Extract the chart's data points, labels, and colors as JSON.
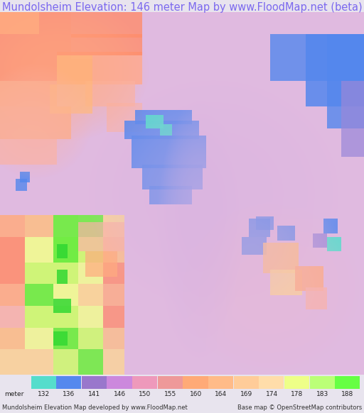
{
  "title": "Mundolsheim Elevation: 146 meter Map by www.FloodMap.net (beta)",
  "title_color": "#7b68ee",
  "title_fontsize": 10.5,
  "bg_color": "#e8e4ee",
  "footer_left": "Mundolsheim Elevation Map developed by www.FloodMap.net",
  "footer_right": "Base map © OpenStreetMap contributors",
  "colorbar_labels": [
    "meter",
    "132",
    "136",
    "141",
    "146",
    "150",
    "155",
    "160",
    "164",
    "169",
    "174",
    "178",
    "183",
    "188"
  ],
  "colorbar_colors": [
    "#55ddcc",
    "#5588ee",
    "#9977cc",
    "#cc88dd",
    "#ee99bb",
    "#ee9999",
    "#ffaa77",
    "#ffbb88",
    "#ffcc99",
    "#ffddaa",
    "#eeff88",
    "#bbff77",
    "#66ff44"
  ],
  "map_bg": [
    0.88,
    0.73,
    0.88
  ],
  "figsize": [
    5.12,
    5.82
  ],
  "dpi": 100,
  "color_132": [
    0.33,
    0.87,
    0.8
  ],
  "color_136": [
    0.33,
    0.53,
    0.93
  ],
  "color_141": [
    0.6,
    0.53,
    0.85
  ],
  "color_146": [
    0.85,
    0.7,
    0.88
  ],
  "color_150": [
    0.92,
    0.72,
    0.82
  ],
  "color_155": [
    0.98,
    0.7,
    0.65
  ],
  "color_160": [
    1.0,
    0.67,
    0.5
  ],
  "color_164": [
    1.0,
    0.55,
    0.42
  ],
  "color_169": [
    1.0,
    0.75,
    0.5
  ],
  "color_174": [
    1.0,
    0.85,
    0.55
  ],
  "color_178": [
    0.95,
    1.0,
    0.55
  ],
  "color_183": [
    0.8,
    1.0,
    0.4
  ],
  "color_188": [
    0.4,
    0.95,
    0.2
  ],
  "color_green": [
    0.2,
    0.85,
    0.2
  ],
  "color_yellow": [
    1.0,
    1.0,
    0.2
  ],
  "color_red_orange": [
    1.0,
    0.45,
    0.35
  ]
}
